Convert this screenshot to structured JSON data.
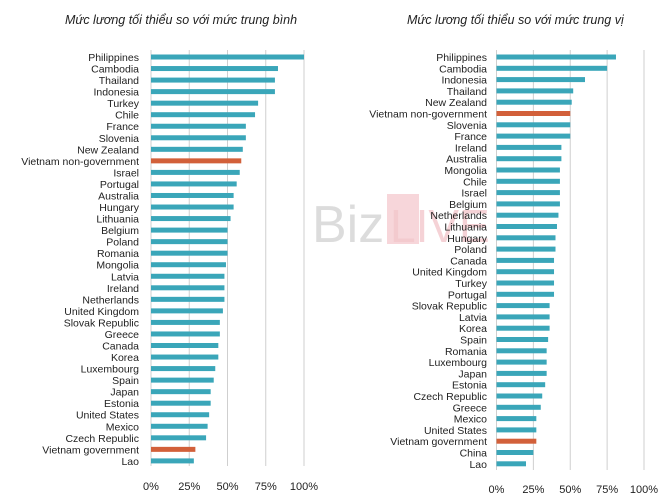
{
  "colors": {
    "bar": "#3aa6b9",
    "highlight": "#d2603a",
    "grid": "#cfcfcf"
  },
  "watermark": {
    "part1": "Biz",
    "part2": "LIVE"
  },
  "chart_data": [
    {
      "type": "bar",
      "orientation": "horizontal",
      "title": "Mức lương tối thiểu so với mức trung bình",
      "xlim": [
        0,
        100
      ],
      "xticks": [
        "0%",
        "25%",
        "50%",
        "75%",
        "100%"
      ],
      "grid": true,
      "categories": [
        "Philippines",
        "Cambodia",
        "Thailand",
        "Indonesia",
        "Turkey",
        "Chile",
        "France",
        "Slovenia",
        "New Zealand",
        "Vietnam non-government",
        "Israel",
        "Portugal",
        "Australia",
        "Hungary",
        "Lithuania",
        "Belgium",
        "Poland",
        "Romania",
        "Mongolia",
        "Latvia",
        "Ireland",
        "Netherlands",
        "United Kingdom",
        "Slovak Republic",
        "Greece",
        "Canada",
        "Korea",
        "Luxembourg",
        "Spain",
        "Japan",
        "Estonia",
        "United States",
        "Mexico",
        "Czech Republic",
        "Vietnam government",
        "Lao"
      ],
      "values": [
        100,
        83,
        81,
        81,
        70,
        68,
        62,
        62,
        60,
        59,
        58,
        56,
        54,
        54,
        52,
        50,
        50,
        50,
        49,
        48,
        48,
        48,
        47,
        45,
        45,
        44,
        44,
        42,
        41,
        39,
        39,
        38,
        37,
        36,
        29,
        28
      ],
      "highlight": [
        "Vietnam non-government",
        "Vietnam government"
      ]
    },
    {
      "type": "bar",
      "orientation": "horizontal",
      "title": "Mức lương tối thiểu so với mức trung vị",
      "xlim": [
        0,
        100
      ],
      "xticks": [
        "0%",
        "25%",
        "50%",
        "75%",
        "100%"
      ],
      "grid": true,
      "categories": [
        "Philippines",
        "Cambodia",
        "Indonesia",
        "Thailand",
        "New Zealand",
        "Vietnam non-government",
        "Slovenia",
        "France",
        "Ireland",
        "Australia",
        "Mongolia",
        "Chile",
        "Israel",
        "Belgium",
        "Netherlands",
        "Lithuania",
        "Hungary",
        "Poland",
        "Canada",
        "United Kingdom",
        "Turkey",
        "Portugal",
        "Slovak Republic",
        "Latvia",
        "Korea",
        "Spain",
        "Romania",
        "Luxembourg",
        "Japan",
        "Estonia",
        "Czech Republic",
        "Greece",
        "Mexico",
        "United States",
        "Vietnam government",
        "China",
        "Lao"
      ],
      "values": [
        81,
        75,
        60,
        52,
        51,
        50,
        50,
        50,
        44,
        44,
        43,
        43,
        43,
        43,
        42,
        41,
        40,
        40,
        39,
        39,
        39,
        39,
        36,
        36,
        36,
        35,
        34,
        34,
        34,
        33,
        31,
        30,
        27,
        27,
        27,
        25,
        20
      ],
      "highlight": [
        "Vietnam non-government",
        "Vietnam government"
      ]
    }
  ]
}
